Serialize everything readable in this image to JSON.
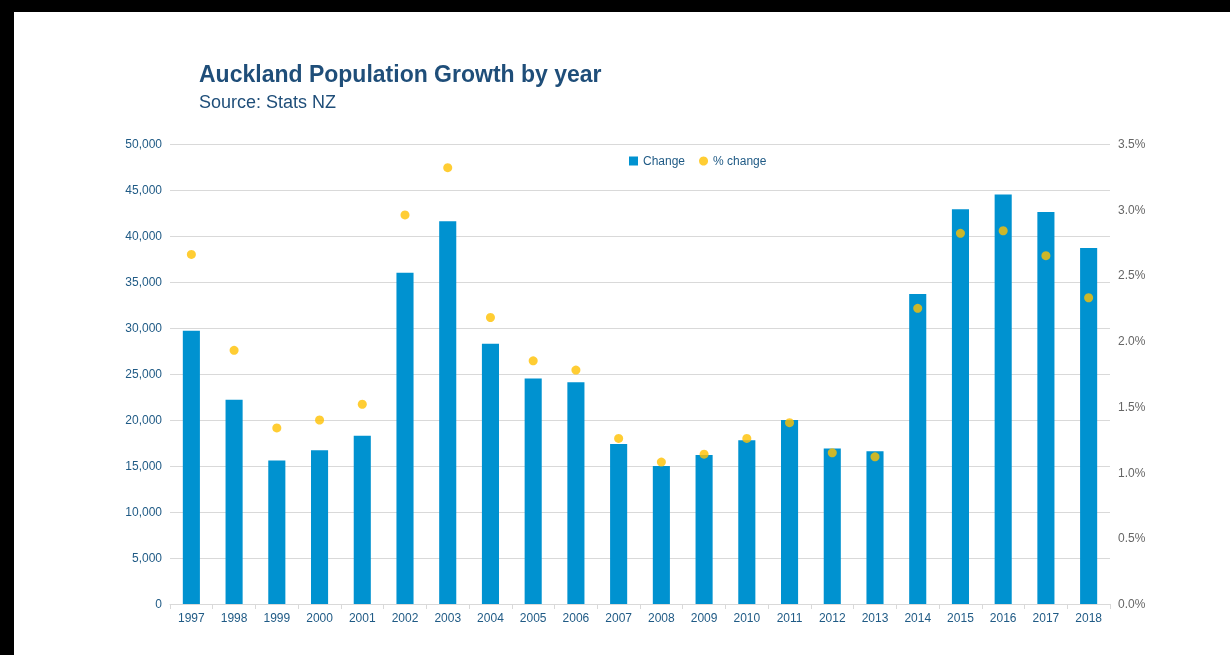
{
  "chart_data": {
    "type": "bar",
    "title": "Auckland Population Growth by year",
    "subtitle": "Source: Stats NZ",
    "categories": [
      "1997",
      "1998",
      "1999",
      "2000",
      "2001",
      "2002",
      "2003",
      "2004",
      "2005",
      "2006",
      "2007",
      "2008",
      "2009",
      "2010",
      "2011",
      "2012",
      "2013",
      "2014",
      "2015",
      "2016",
      "2017",
      "2018"
    ],
    "series": [
      {
        "name": "Change",
        "color": "#0092d0",
        "values": [
          29700,
          22200,
          15600,
          16700,
          18300,
          36000,
          41600,
          28300,
          24500,
          24100,
          17400,
          15000,
          16200,
          17800,
          20000,
          16900,
          16600,
          33700,
          42900,
          44500,
          42600,
          38700
        ]
      },
      {
        "name": "% change",
        "type": "scatter",
        "axis": "y2",
        "color": "#ffc000",
        "values": [
          2.66,
          1.93,
          1.34,
          1.4,
          1.52,
          2.96,
          3.32,
          2.18,
          1.85,
          1.78,
          1.26,
          1.08,
          1.14,
          1.26,
          1.38,
          1.15,
          1.12,
          2.25,
          2.82,
          2.84,
          2.65,
          2.33
        ]
      }
    ],
    "ylim": [
      0,
      50000
    ],
    "yticks": [
      {
        "value": 0,
        "label": "0"
      },
      {
        "value": 5000,
        "label": "5,000"
      },
      {
        "value": 10000,
        "label": "10,000"
      },
      {
        "value": 15000,
        "label": "15,000"
      },
      {
        "value": 20000,
        "label": "20,000"
      },
      {
        "value": 25000,
        "label": "25,000"
      },
      {
        "value": 30000,
        "label": "30,000"
      },
      {
        "value": 35000,
        "label": "35,000"
      },
      {
        "value": 40000,
        "label": "40,000"
      },
      {
        "value": 45000,
        "label": "45,000"
      },
      {
        "value": 50000,
        "label": "50,000"
      }
    ],
    "y2lim": [
      0,
      3.5
    ],
    "y2ticks": [
      {
        "value": 0,
        "label": "0.0%"
      },
      {
        "value": 0.5,
        "label": "0.5%"
      },
      {
        "value": 1,
        "label": "1.0%"
      },
      {
        "value": 1.5,
        "label": "1.5%"
      },
      {
        "value": 2,
        "label": "2.0%"
      },
      {
        "value": 2.5,
        "label": "2.5%"
      },
      {
        "value": 3,
        "label": "3.0%"
      },
      {
        "value": 3.5,
        "label": "3.5%"
      }
    ],
    "grid": "y",
    "legend": "top",
    "marker": "circle"
  }
}
